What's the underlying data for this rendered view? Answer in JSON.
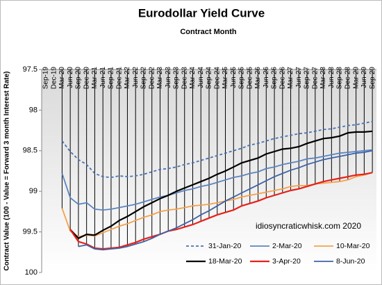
{
  "chart_data": {
    "type": "line",
    "title": "Eurodollar Yield Curve",
    "x_label": "Contract Month",
    "y_label": "Contract Value (100 - Value = Forward 3 month Interest Rate)",
    "annotation": "idiosyncraticwhisk.com    2020",
    "categories": [
      "Sep-19",
      "Dec-19",
      "Mar-20",
      "Jun-20",
      "Sep-20",
      "Dec-20",
      "Mar-21",
      "Jun-21",
      "Sep-21",
      "Dec-21",
      "Mar-22",
      "Jun-22",
      "Sep-22",
      "Dec-22",
      "Mar-23",
      "Jun-23",
      "Sep-23",
      "Dec-23",
      "Mar-24",
      "Jun-24",
      "Sep-24",
      "Dec-24",
      "Mar-25",
      "Jun-25",
      "Sep-25",
      "Dec-25",
      "Mar-26",
      "Jun-26",
      "Sep-26",
      "Dec-26",
      "Mar-27",
      "Jun-27",
      "Sep-27",
      "Dec-27",
      "Mar-28",
      "Jun-28",
      "Sep-28",
      "Dec-28",
      "Mar-29",
      "Jun-29",
      "Sep-29"
    ],
    "ylim": [
      97.5,
      100
    ],
    "y_inverted": true,
    "yticks": [
      97.5,
      98,
      98.5,
      99,
      99.5,
      100
    ],
    "high_low_lines": true,
    "legend": "lower right",
    "series": [
      {
        "name": "31-Jan-20",
        "color": "#4a72b0",
        "dash": true,
        "values": [
          null,
          null,
          98.38,
          98.51,
          98.61,
          98.67,
          98.78,
          98.82,
          98.83,
          98.81,
          98.82,
          98.81,
          98.79,
          98.76,
          98.73,
          98.72,
          98.7,
          98.67,
          98.65,
          98.62,
          98.59,
          98.56,
          98.53,
          98.5,
          98.47,
          98.43,
          98.41,
          98.38,
          98.35,
          98.33,
          98.31,
          98.29,
          98.28,
          98.26,
          98.24,
          98.23,
          98.21,
          98.19,
          98.18,
          98.16,
          98.14
        ]
      },
      {
        "name": "2-Mar-20",
        "color": "#5b84c0",
        "values": [
          null,
          null,
          98.78,
          99.08,
          99.16,
          99.14,
          99.22,
          99.23,
          99.22,
          99.2,
          99.18,
          99.16,
          99.13,
          99.1,
          99.07,
          99.05,
          99.02,
          98.99,
          98.97,
          98.94,
          98.92,
          98.89,
          98.86,
          98.83,
          98.81,
          98.78,
          98.76,
          98.72,
          98.7,
          98.67,
          98.65,
          98.63,
          98.6,
          98.59,
          98.57,
          98.55,
          98.53,
          98.52,
          98.51,
          98.5,
          98.49
        ]
      },
      {
        "name": "10-Mar-20",
        "color": "#f5a04a",
        "values": [
          null,
          null,
          99.21,
          99.49,
          99.56,
          99.54,
          99.55,
          99.51,
          99.47,
          99.43,
          99.4,
          99.36,
          99.32,
          99.29,
          99.25,
          99.23,
          99.22,
          99.2,
          99.18,
          99.17,
          99.16,
          99.14,
          99.12,
          99.1,
          99.07,
          99.05,
          99.03,
          99.01,
          98.99,
          98.97,
          98.94,
          98.93,
          98.93,
          98.91,
          98.9,
          98.89,
          98.88,
          98.86,
          98.82,
          98.8,
          98.77
        ]
      },
      {
        "name": "18-Mar-20",
        "color": "#000000",
        "values": [
          null,
          null,
          null,
          99.47,
          99.58,
          99.53,
          99.54,
          99.48,
          99.43,
          99.36,
          99.31,
          99.25,
          99.19,
          99.14,
          99.09,
          99.05,
          99.0,
          98.96,
          98.92,
          98.88,
          98.84,
          98.79,
          98.75,
          98.7,
          98.65,
          98.62,
          98.59,
          98.54,
          98.51,
          98.48,
          98.47,
          98.45,
          98.41,
          98.38,
          98.35,
          98.34,
          98.32,
          98.28,
          98.27,
          98.27,
          98.26
        ]
      },
      {
        "name": "3-Apr-20",
        "color": "#e8201a",
        "values": [
          null,
          null,
          null,
          99.47,
          99.62,
          99.65,
          99.7,
          99.71,
          99.7,
          99.69,
          99.66,
          99.63,
          99.59,
          99.56,
          99.53,
          99.49,
          99.47,
          99.44,
          99.41,
          99.37,
          99.33,
          99.29,
          99.26,
          99.23,
          99.18,
          99.15,
          99.12,
          99.08,
          99.05,
          99.02,
          98.99,
          98.97,
          98.94,
          98.91,
          98.88,
          98.86,
          98.84,
          98.82,
          98.8,
          98.79,
          98.77
        ]
      },
      {
        "name": "8-Jun-20",
        "color": "#3d62a8",
        "values": [
          null,
          null,
          null,
          null,
          99.68,
          99.66,
          99.71,
          99.72,
          99.71,
          99.7,
          99.68,
          99.65,
          99.62,
          99.58,
          99.53,
          99.49,
          99.45,
          99.4,
          99.35,
          99.29,
          99.24,
          99.18,
          99.12,
          99.07,
          99.02,
          98.97,
          98.92,
          98.87,
          98.82,
          98.78,
          98.74,
          98.71,
          98.67,
          98.64,
          98.61,
          98.59,
          98.57,
          98.55,
          98.53,
          98.52,
          98.5
        ]
      }
    ]
  }
}
